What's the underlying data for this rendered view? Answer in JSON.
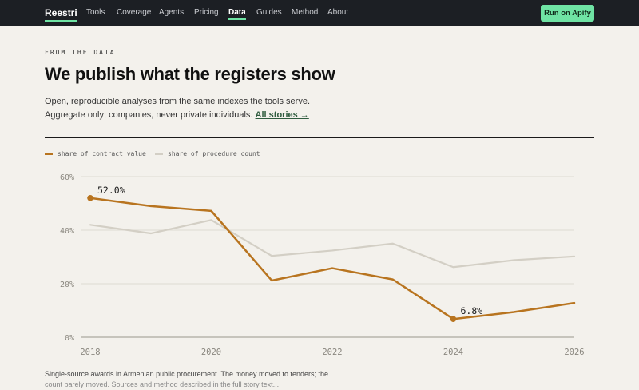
{
  "nav": {
    "logo": "Reestri",
    "items": [
      "Tools",
      "Coverage",
      "Agents",
      "Pricing",
      "Data",
      "Guides",
      "Method",
      "About"
    ],
    "active_item": "Data",
    "cta_label": "Run on Apify"
  },
  "hero": {
    "eyebrow": "FROM THE DATA",
    "title": "We publish what the registers show",
    "lede": "Open, reproducible analyses from the same indexes the tools serve. Aggregate only; companies, never private individuals.",
    "link_label": "All stories →"
  },
  "chart_data": {
    "type": "line",
    "x": [
      2018,
      2019,
      2020,
      2021,
      2022,
      2023,
      2024,
      2025,
      2026
    ],
    "series": [
      {
        "name": "share of contract value",
        "color": "#b8741f",
        "values": [
          52.0,
          49.0,
          47.2,
          21.2,
          25.8,
          21.6,
          6.8,
          9.4,
          12.8
        ]
      },
      {
        "name": "share of procedure count",
        "color": "#d3cfc5",
        "values": [
          42.0,
          38.8,
          43.8,
          30.4,
          32.4,
          35.0,
          26.2,
          28.8,
          30.2
        ]
      }
    ],
    "yticks": [
      "0%",
      "20%",
      "40%",
      "60%"
    ],
    "ytick_values": [
      0,
      20,
      40,
      60
    ],
    "xticks": [
      "2018",
      "2020",
      "2022",
      "2024",
      "2026"
    ],
    "xtick_values": [
      2018,
      2020,
      2022,
      2024,
      2026
    ],
    "ylim": [
      0,
      60
    ],
    "xlim": [
      2018,
      2026
    ],
    "annotations": [
      {
        "label": "52.0%",
        "x": 2018,
        "y": 52.0
      },
      {
        "label": "6.8%",
        "x": 2024,
        "y": 6.8
      }
    ],
    "grid": true,
    "legend_position": "top-left"
  },
  "caption": {
    "text": "Single-source awards in Armenian public procurement. The money moved to tenders; the",
    "cut_off": "count barely moved. Sources and method described in the full story text..."
  }
}
